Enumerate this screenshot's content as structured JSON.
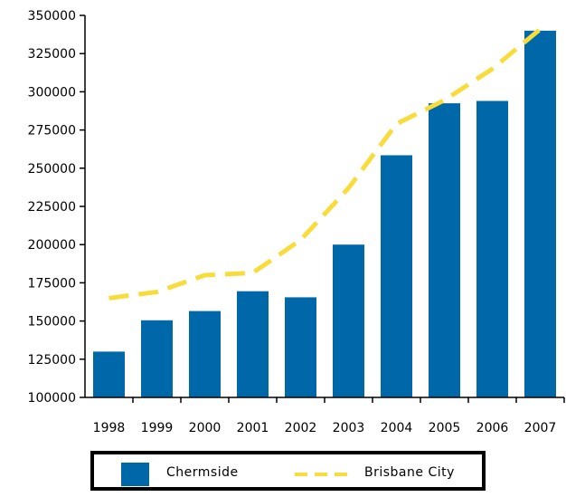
{
  "chart_data": {
    "type": "bar",
    "categories": [
      "1998",
      "1999",
      "2000",
      "2001",
      "2002",
      "2003",
      "2004",
      "2005",
      "2006",
      "2007"
    ],
    "series": [
      {
        "name": "Chermside",
        "type": "bar",
        "color": "#0068a8",
        "values": [
          130000,
          150500,
          156500,
          169500,
          165500,
          200000,
          258500,
          292500,
          294000,
          340000
        ]
      },
      {
        "name": "Brisbane City",
        "type": "line",
        "style": "dashed",
        "color": "#f8dc3c",
        "values": [
          165000,
          169000,
          180000,
          181500,
          203000,
          237000,
          279000,
          294500,
          315000,
          341000
        ]
      }
    ],
    "yticks": [
      "100000",
      "125000",
      "150000",
      "175000",
      "200000",
      "225000",
      "250000",
      "275000",
      "300000",
      "325000",
      "350000"
    ],
    "ylim": [
      100000,
      350000
    ],
    "legend_position": "bottom",
    "grid": false
  }
}
